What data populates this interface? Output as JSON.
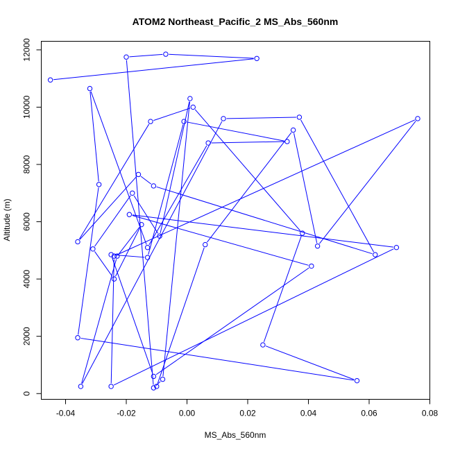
{
  "chart_data": {
    "type": "line",
    "title": "ATOM2 Northeast_Pacific_2 MS_Abs_560nm",
    "xlabel": "MS_Abs_560nm",
    "ylabel": "Altitude (m)",
    "xlim": [
      -0.048,
      0.08
    ],
    "ylim": [
      -200,
      12300
    ],
    "xticks": [
      -0.04,
      -0.02,
      0.0,
      0.02,
      0.04,
      0.06,
      0.08
    ],
    "xtick_labels": [
      "-0.04",
      "-0.02",
      "0.00",
      "0.02",
      "0.04",
      "0.06",
      "0.08"
    ],
    "yticks": [
      0,
      2000,
      4000,
      6000,
      8000,
      10000,
      12000
    ],
    "ytick_labels": [
      "0",
      "2000",
      "4000",
      "6000",
      "8000",
      "10000",
      "12000"
    ],
    "grid": false,
    "series_color": "#0000ff",
    "series": [
      {
        "x": [
          -0.045,
          0.023,
          -0.007,
          -0.02,
          -0.011,
          -0.008,
          0.001,
          -0.009,
          -0.018,
          -0.031,
          -0.024,
          -0.015,
          -0.023,
          -0.035,
          0.012,
          0.037,
          0.062,
          -0.011,
          -0.016,
          -0.036,
          -0.012,
          0.002,
          0.038,
          0.025,
          0.056,
          -0.036,
          -0.029,
          -0.032,
          -0.013,
          0.007,
          0.033,
          -0.001,
          -0.013,
          -0.025,
          -0.011,
          0.041,
          -0.019,
          0.069,
          -0.025,
          -0.024,
          0.076,
          0.043,
          0.035,
          0.006,
          -0.01
        ],
        "y": [
          10950,
          11700,
          11850,
          11750,
          200,
          500,
          10300,
          5500,
          7000,
          5050,
          4000,
          5900,
          4800,
          250,
          9600,
          9650,
          4850,
          7250,
          7650,
          5300,
          9500,
          10000,
          5600,
          1700,
          450,
          1950,
          7300,
          10650,
          5100,
          8750,
          8800,
          9500,
          4750,
          4850,
          600,
          4450,
          6250,
          5100,
          250,
          4800,
          9600,
          5150,
          9200,
          5200,
          250
        ]
      }
    ]
  }
}
